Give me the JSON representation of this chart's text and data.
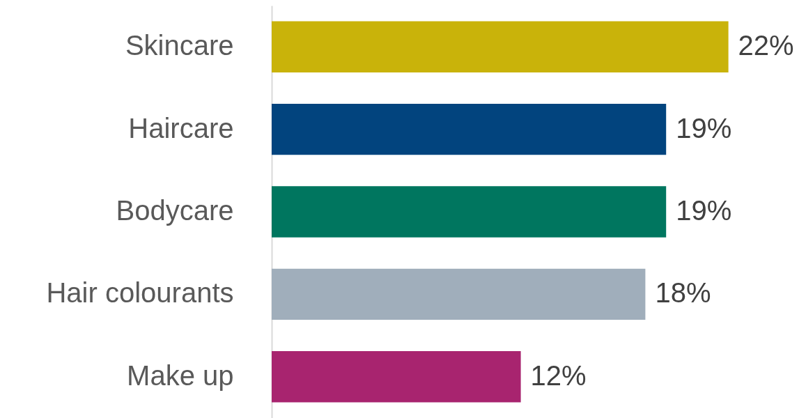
{
  "chart_data": {
    "type": "bar",
    "orientation": "horizontal",
    "categories": [
      "Skincare",
      "Haircare",
      "Bodycare",
      "Hair colourants",
      "Make up"
    ],
    "values": [
      22,
      19,
      19,
      18,
      12
    ],
    "colors": [
      "#c9b30a",
      "#02447e",
      "#00765f",
      "#a0aebb",
      "#a8246f"
    ],
    "value_labels": [
      "22%",
      "19%",
      "19%",
      "18%",
      "12%"
    ]
  }
}
